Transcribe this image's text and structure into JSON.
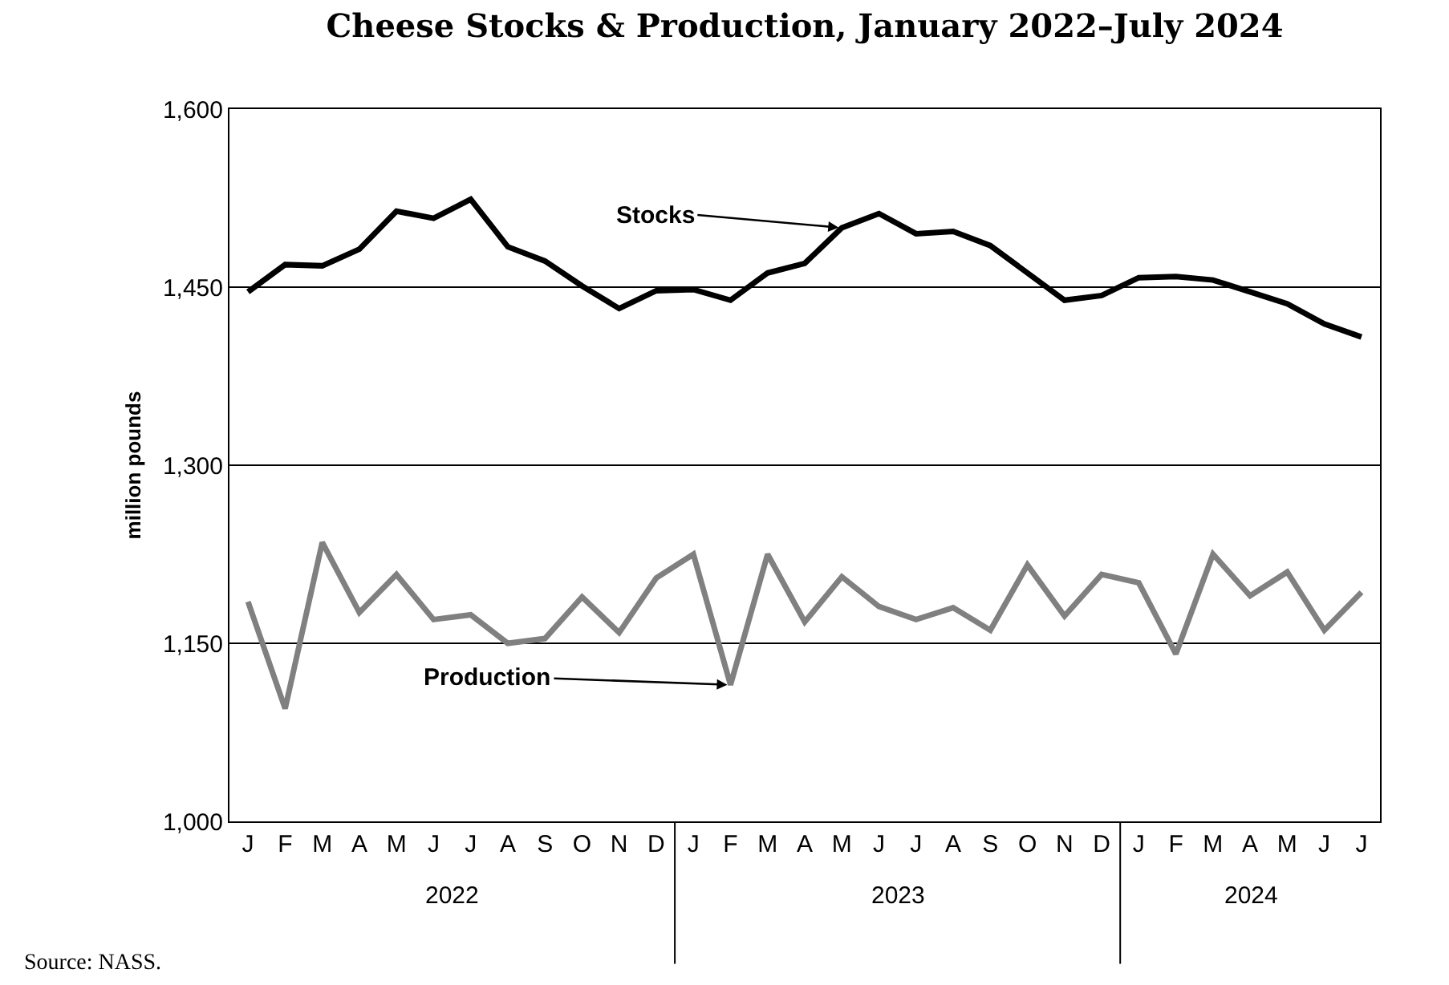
{
  "chart_data": {
    "type": "line",
    "title": "Cheese Stocks & Production, January 2022–July 2024",
    "ylabel": "million pounds",
    "categories": [
      "J",
      "F",
      "M",
      "A",
      "M",
      "J",
      "J",
      "A",
      "S",
      "O",
      "N",
      "D",
      "J",
      "F",
      "M",
      "A",
      "M",
      "J",
      "J",
      "A",
      "S",
      "O",
      "N",
      "D",
      "J",
      "F",
      "M",
      "A",
      "M",
      "J",
      "J"
    ],
    "series": [
      {
        "name": "Stocks",
        "color": "#000000",
        "values": [
          1446,
          1469,
          1468,
          1482,
          1514,
          1508,
          1524,
          1484,
          1472,
          1451,
          1432,
          1447,
          1448,
          1439,
          1462,
          1470,
          1500,
          1512,
          1495,
          1497,
          1485,
          1462,
          1439,
          1443,
          1458,
          1459,
          1456,
          1446,
          1436,
          1419,
          1408
        ]
      },
      {
        "name": "Production",
        "color": "#808080",
        "values": [
          1185,
          1095,
          1235,
          1176,
          1208,
          1170,
          1174,
          1150,
          1154,
          1189,
          1159,
          1205,
          1225,
          1115,
          1225,
          1168,
          1206,
          1181,
          1170,
          1180,
          1161,
          1216,
          1173,
          1208,
          1201,
          1141,
          1225,
          1190,
          1210,
          1161,
          1193
        ]
      }
    ],
    "ylim": [
      1000,
      1600
    ],
    "yticks": [
      {
        "value": 1000,
        "label": "1,000"
      },
      {
        "value": 1150,
        "label": "1,150"
      },
      {
        "value": 1300,
        "label": "1,300"
      },
      {
        "value": 1450,
        "label": "1,450"
      },
      {
        "value": 1600,
        "label": "1,600"
      }
    ],
    "grid": "y",
    "legend": false,
    "marker": "none",
    "line_style": "solid",
    "annotations": [
      "2022",
      "2023",
      "2024",
      "Source: NASS."
    ]
  }
}
